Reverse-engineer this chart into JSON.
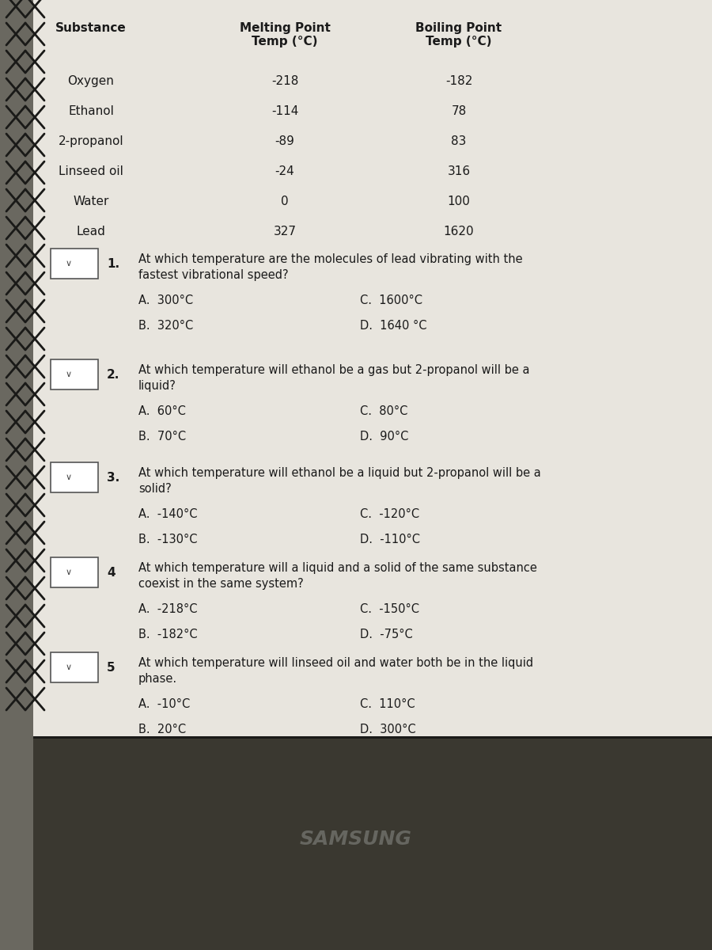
{
  "page_bg": "#e8e5de",
  "dark_bg": "#3a3830",
  "spiral_dark": "#2a2a2a",
  "spiral_light": "#888880",
  "table": {
    "headers": [
      "Substance",
      "Melting Point\nTemp (°C)",
      "Boiling Point\nTemp (°C)"
    ],
    "rows": [
      [
        "Oxygen",
        "-218",
        "-182"
      ],
      [
        "Ethanol",
        "-114",
        "78"
      ],
      [
        "2-propanol",
        "-89",
        "83"
      ],
      [
        "Linseed oil",
        "-24",
        "316"
      ],
      [
        "Water",
        "0",
        "100"
      ],
      [
        "Lead",
        "327",
        "1620"
      ]
    ]
  },
  "questions": [
    {
      "number": "1.",
      "question": "At which temperature are the molecules of lead vibrating with the\nfastest vibrational speed?",
      "options": [
        [
          "A.  300°C",
          "C.  1600°C"
        ],
        [
          "B.  320°C",
          "D.  1640 °C"
        ]
      ]
    },
    {
      "number": "2.",
      "question": "At which temperature will ethanol be a gas but 2-propanol will be a\nliquid?",
      "options": [
        [
          "A.  60°C",
          "C.  80°C"
        ],
        [
          "B.  70°C",
          "D.  90°C"
        ]
      ]
    },
    {
      "number": "3.",
      "question": "At which temperature will ethanol be a liquid but 2-propanol will be a\nsolid?",
      "options": [
        [
          "A.  -140°C",
          "C.  -120°C"
        ],
        [
          "B.  -130°C",
          "D.  -110°C"
        ]
      ]
    },
    {
      "number": "4",
      "question": "At which temperature will a liquid and a solid of the same substance\ncoexist in the same system?",
      "options": [
        [
          "A.  -218°C",
          "C.  -150°C"
        ],
        [
          "B.  -182°C",
          "D.  -75°C"
        ]
      ]
    },
    {
      "number": "5",
      "question": "At which temperature will linseed oil and water both be in the liquid\nphase.",
      "options": [
        [
          "A.  -10°C",
          "C.  110°C"
        ],
        [
          "B.  20°C",
          "D.  300°C"
        ]
      ]
    }
  ],
  "samsung_text": "SAMSUNG",
  "text_color": "#1a1a1a"
}
